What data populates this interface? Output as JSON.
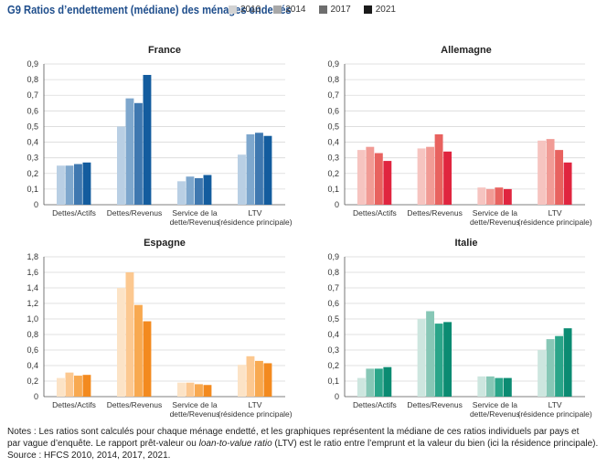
{
  "figure": {
    "title": "G9  Ratios d’endettement (médiane) des ménages endettés"
  },
  "legend": {
    "items": [
      {
        "label": "2010",
        "color": "#d3d3d3"
      },
      {
        "label": "2014",
        "color": "#a8a8a8"
      },
      {
        "label": "2017",
        "color": "#6e6e6e"
      },
      {
        "label": "2021",
        "color": "#1a1a1a"
      }
    ]
  },
  "notes": {
    "line1": "Notes : Les ratios sont calculés pour chaque ménage endetté, et les graphiques représentent la médiane de ces ratios individuels par pays et",
    "line2_a": "par vague d’enquête. Le rapport prêt-valeur ou ",
    "line2_b": "loan-to-value ratio",
    "line2_c": " (LTV) est le ratio entre l’emprunt et la valeur du bien (ici la résidence principale).",
    "line3": "Source : HFCS 2010, 2014, 2017, 2021."
  },
  "chart_data": [
    {
      "type": "bar",
      "title": "France",
      "categories": [
        [
          "Dettes/Actifs"
        ],
        [
          "Dettes/Revenus"
        ],
        [
          "Service de la",
          "dette/Revenus"
        ],
        [
          "LTV",
          "(résidence principale)"
        ]
      ],
      "ylim": [
        0,
        0.9
      ],
      "yticks": [
        "0",
        "0,1",
        "0,2",
        "0,3",
        "0,4",
        "0,5",
        "0,6",
        "0,7",
        "0,8",
        "0,9"
      ],
      "grid": true,
      "colors": [
        "#b9cfe4",
        "#7ea7cd",
        "#3f78b0",
        "#135c9e"
      ],
      "series": [
        {
          "name": "2010",
          "values": [
            0.25,
            0.5,
            0.15,
            0.32
          ]
        },
        {
          "name": "2014",
          "values": [
            0.25,
            0.68,
            0.18,
            0.45
          ]
        },
        {
          "name": "2017",
          "values": [
            0.26,
            0.65,
            0.17,
            0.46
          ]
        },
        {
          "name": "2021",
          "values": [
            0.27,
            0.83,
            0.19,
            0.44
          ]
        }
      ]
    },
    {
      "type": "bar",
      "title": "Allemagne",
      "categories": [
        [
          "Dettes/Actifs"
        ],
        [
          "Dettes/Revenus"
        ],
        [
          "Service de la",
          "dette/Revenus"
        ],
        [
          "LTV",
          "(résidence principale)"
        ]
      ],
      "ylim": [
        0,
        0.9
      ],
      "yticks": [
        "0",
        "0,1",
        "0,2",
        "0,3",
        "0,4",
        "0,5",
        "0,6",
        "0,7",
        "0,8",
        "0,9"
      ],
      "grid": true,
      "colors": [
        "#f6c4c0",
        "#f19b95",
        "#e8625f",
        "#e0253f"
      ],
      "series": [
        {
          "name": "2010",
          "values": [
            0.35,
            0.36,
            0.11,
            0.41
          ]
        },
        {
          "name": "2014",
          "values": [
            0.37,
            0.37,
            0.1,
            0.42
          ]
        },
        {
          "name": "2017",
          "values": [
            0.33,
            0.45,
            0.11,
            0.35
          ]
        },
        {
          "name": "2021",
          "values": [
            0.28,
            0.34,
            0.1,
            0.27
          ]
        }
      ]
    },
    {
      "type": "bar",
      "title": "Espagne",
      "categories": [
        [
          "Dettes/Actifs"
        ],
        [
          "Dettes/Revenus"
        ],
        [
          "Service de la",
          "dette/Revenus"
        ],
        [
          "LTV",
          "(résidence principale)"
        ]
      ],
      "ylim": [
        0,
        1.8
      ],
      "yticks": [
        "0",
        "0,2",
        "0,4",
        "0,6",
        "0,8",
        "1,0",
        "1,2",
        "1,4",
        "1,6",
        "1,8"
      ],
      "grid": true,
      "colors": [
        "#fce3c6",
        "#fcc890",
        "#f8a950",
        "#f38a1f"
      ],
      "series": [
        {
          "name": "2010",
          "values": [
            0.24,
            1.4,
            0.18,
            0.41
          ]
        },
        {
          "name": "2014",
          "values": [
            0.31,
            1.6,
            0.18,
            0.52
          ]
        },
        {
          "name": "2017",
          "values": [
            0.27,
            1.18,
            0.16,
            0.46
          ]
        },
        {
          "name": "2021",
          "values": [
            0.28,
            0.97,
            0.15,
            0.43
          ]
        }
      ]
    },
    {
      "type": "bar",
      "title": "Italie",
      "categories": [
        [
          "Dettes/Actifs"
        ],
        [
          "Dettes/Revenus"
        ],
        [
          "Service de la",
          "dette/Revenus"
        ],
        [
          "LTV",
          "(résidence principale)"
        ]
      ],
      "ylim": [
        0,
        0.9
      ],
      "yticks": [
        "0",
        "0,1",
        "0,2",
        "0,3",
        "0,4",
        "0,5",
        "0,6",
        "0,7",
        "0,8",
        "0,9"
      ],
      "grid": true,
      "colors": [
        "#cde6df",
        "#87c7b6",
        "#2aa589",
        "#0b8b72"
      ],
      "series": [
        {
          "name": "2010",
          "values": [
            0.12,
            0.5,
            0.13,
            0.3
          ]
        },
        {
          "name": "2014",
          "values": [
            0.18,
            0.55,
            0.13,
            0.37
          ]
        },
        {
          "name": "2017",
          "values": [
            0.18,
            0.47,
            0.12,
            0.39
          ]
        },
        {
          "name": "2021",
          "values": [
            0.19,
            0.48,
            0.12,
            0.44
          ]
        }
      ]
    }
  ]
}
